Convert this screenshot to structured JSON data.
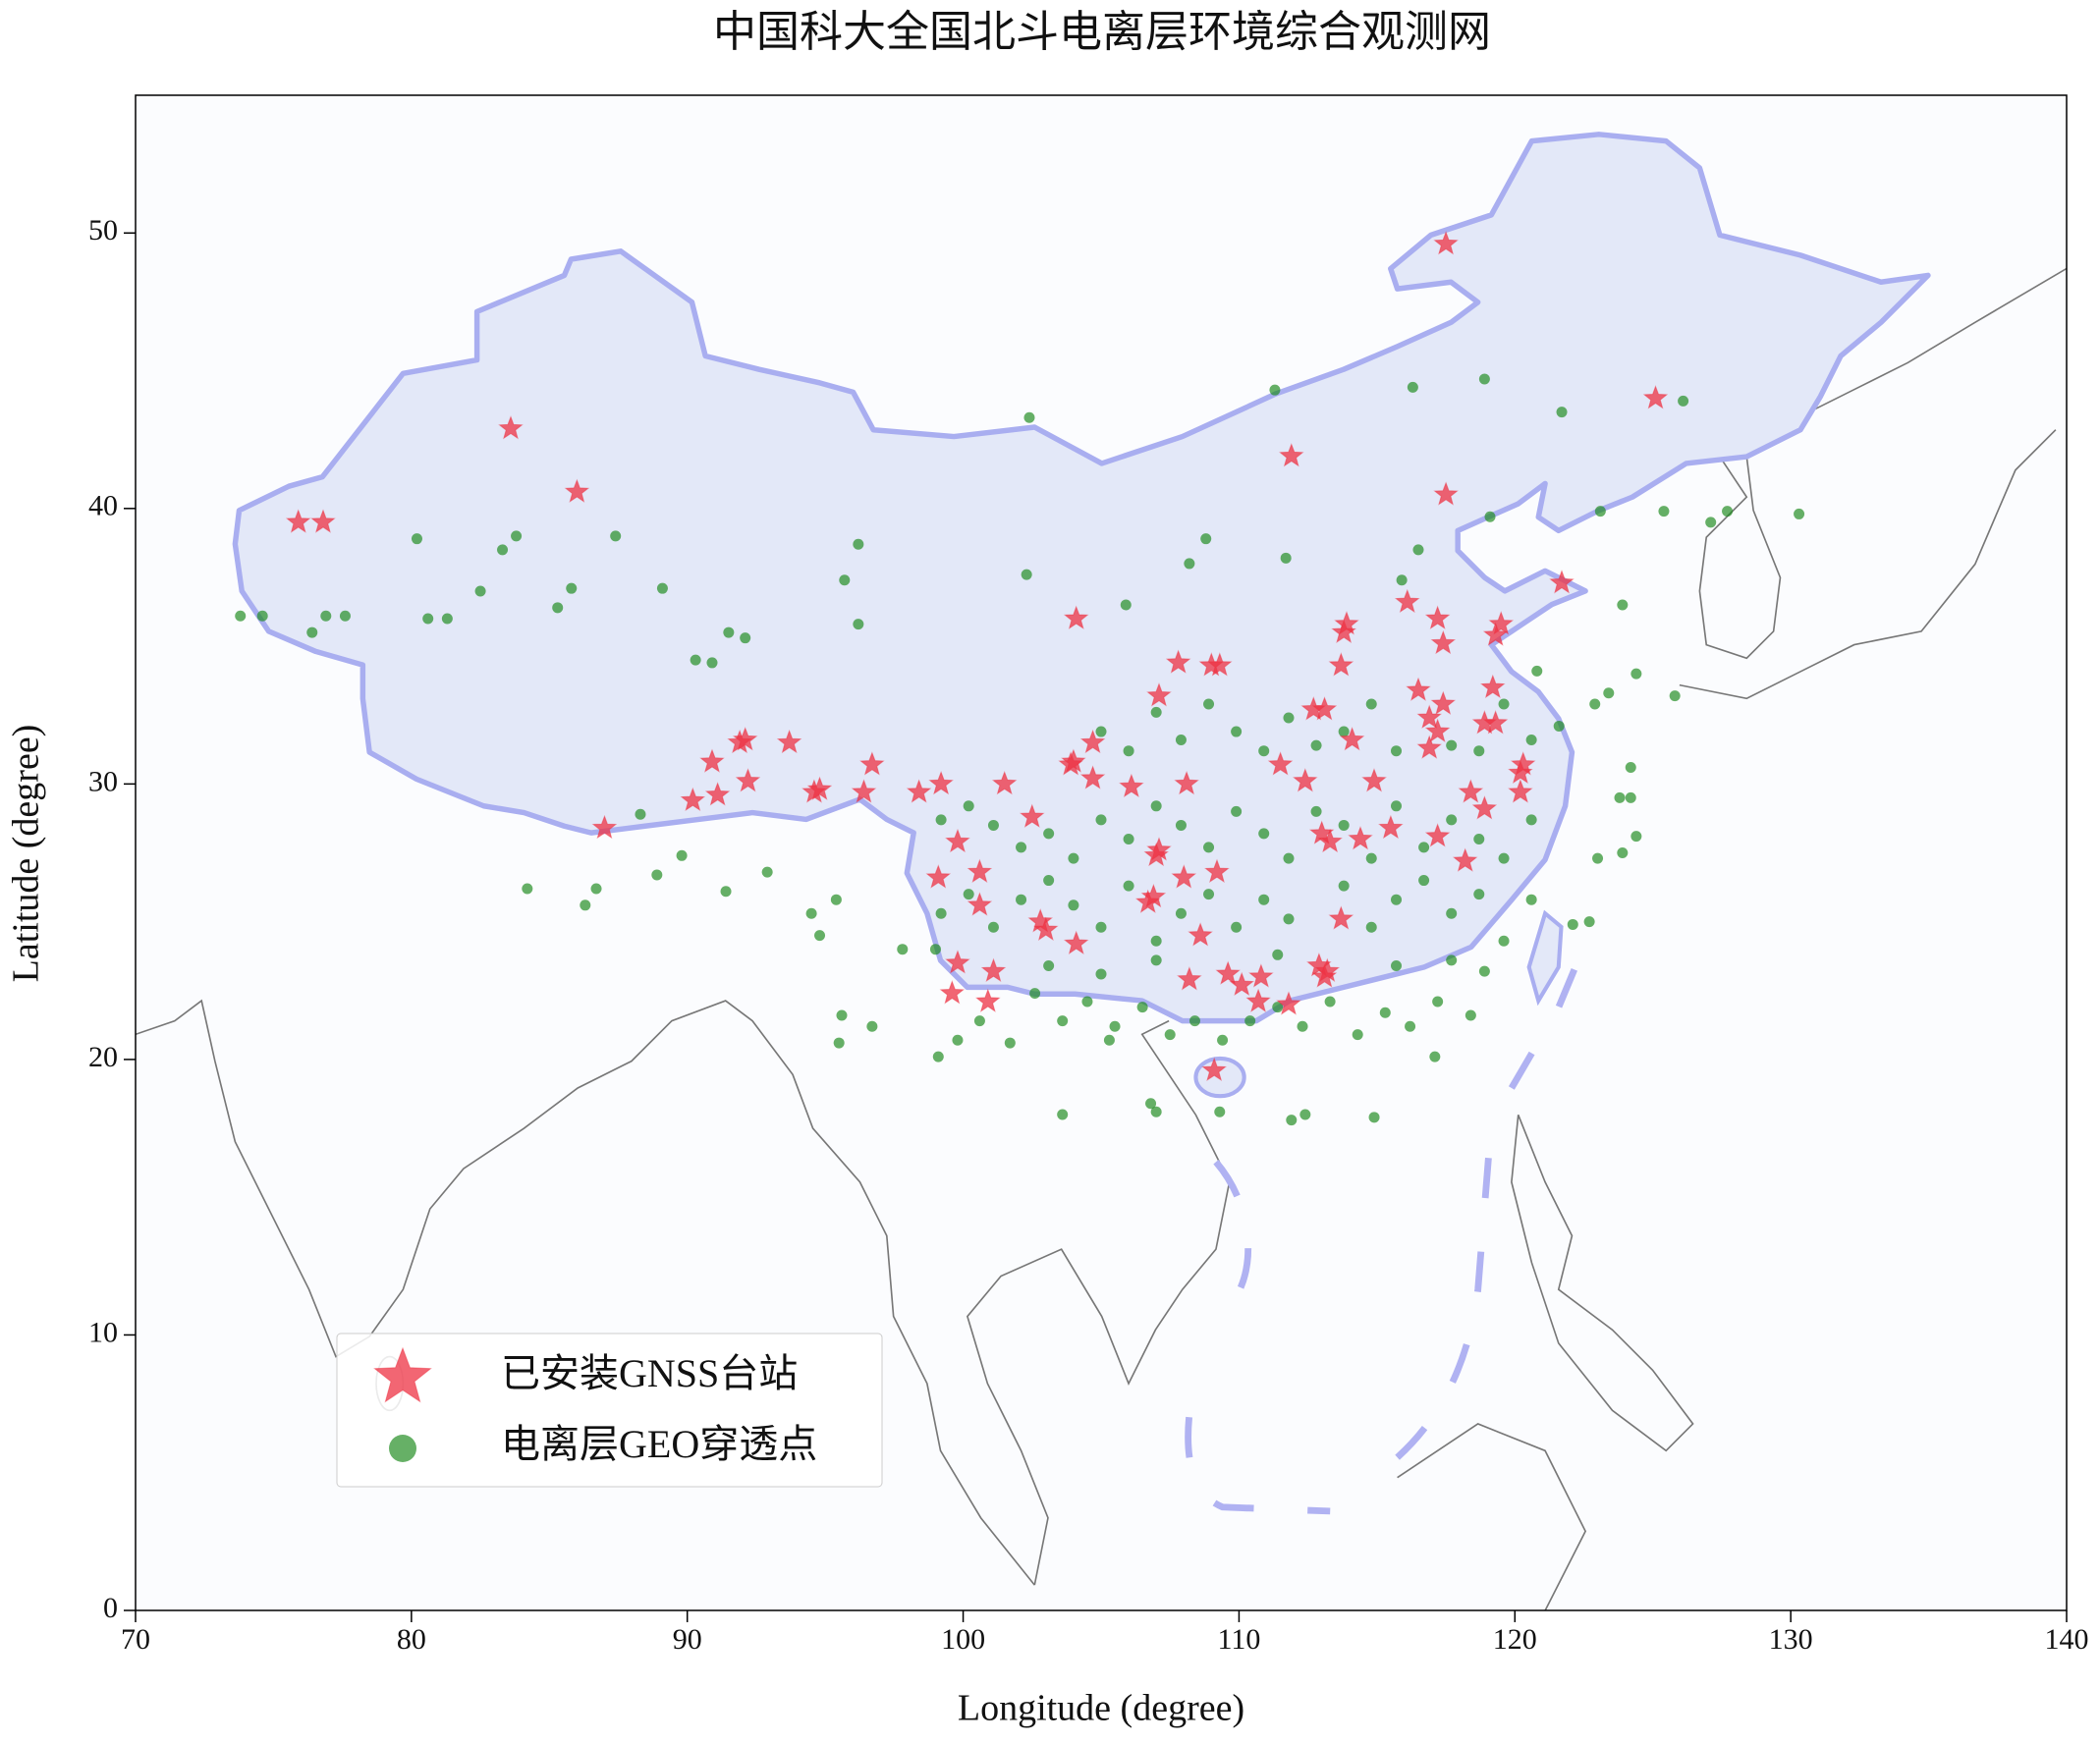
{
  "chart_data": {
    "type": "scatter",
    "title": "中国科大全国北斗电离层环境综合观测网",
    "x_label": "Longitude (degree)",
    "y_label": "Latitude (degree)",
    "xlim": [
      70,
      140
    ],
    "xticks": [
      70,
      80,
      90,
      100,
      110,
      120,
      130,
      140
    ],
    "ylim": [
      0,
      55
    ],
    "yticks": [
      0,
      10,
      20,
      30,
      40,
      50
    ],
    "legend": "lower left",
    "series": [
      {
        "name": "已安装GNSS台站",
        "color": "#ee3344",
        "marker": "star",
        "x": [
          117.5,
          75.9,
          76.8,
          83.6,
          86.0,
          125.1,
          111.9,
          117.5,
          121.7,
          104.1,
          117.2,
          116.1,
          113.8,
          113.9,
          117.4,
          119.5,
          119.3,
          113.7,
          107.8,
          109.0,
          109.3,
          107.1,
          116.5,
          117.4,
          119.2,
          112.7,
          113.1,
          116.9,
          117.2,
          118.9,
          119.3,
          114.1,
          116.9,
          92.1,
          91.9,
          90.9,
          93.7,
          104.7,
          96.7,
          103.9,
          104.0,
          111.5,
          120.3,
          120.2,
          92.2,
          91.1,
          90.2,
          94.6,
          94.8,
          96.4,
          98.4,
          99.2,
          101.5,
          104.7,
          106.1,
          108.1,
          112.4,
          114.9,
          118.4,
          120.2,
          118.9,
          87.0,
          99.8,
          102.5,
          107.1,
          107.0,
          113.0,
          113.3,
          114.4,
          115.5,
          117.2,
          118.2,
          99.1,
          100.6,
          100.6,
          106.7,
          106.9,
          108.0,
          109.2,
          113.7,
          102.8,
          103.0,
          104.1,
          108.6,
          99.8,
          101.1,
          108.2,
          109.6,
          110.1,
          110.8,
          112.9,
          113.2,
          113.1,
          99.6,
          100.9,
          110.7,
          111.8,
          109.1
        ],
        "y": [
          49.6,
          39.5,
          39.5,
          42.9,
          40.6,
          44.0,
          41.9,
          40.5,
          37.3,
          36.0,
          36.0,
          36.6,
          35.5,
          35.8,
          35.1,
          35.8,
          35.4,
          34.3,
          34.4,
          34.3,
          34.3,
          33.2,
          33.4,
          32.9,
          33.5,
          32.7,
          32.7,
          32.4,
          31.9,
          32.2,
          32.2,
          31.6,
          31.3,
          31.6,
          31.5,
          30.8,
          31.5,
          31.5,
          30.7,
          30.7,
          30.8,
          30.7,
          30.7,
          30.4,
          30.1,
          29.6,
          29.4,
          29.7,
          29.8,
          29.7,
          29.7,
          30.0,
          30.0,
          30.2,
          29.9,
          30.0,
          30.1,
          30.1,
          29.7,
          29.7,
          29.1,
          28.4,
          27.9,
          28.8,
          27.6,
          27.4,
          28.2,
          27.9,
          28.0,
          28.4,
          28.1,
          27.2,
          26.6,
          26.8,
          25.6,
          25.7,
          25.9,
          26.6,
          26.8,
          25.1,
          25.0,
          24.7,
          24.2,
          24.5,
          23.5,
          23.2,
          22.9,
          23.1,
          22.7,
          23.0,
          23.4,
          23.2,
          23.0,
          22.4,
          22.1,
          22.1,
          22.0,
          19.6
        ]
      },
      {
        "name": "电离层GEO穿透点",
        "color": "#1e8b1e",
        "marker": "circle",
        "x": [
          73.8,
          74.6,
          76.4,
          76.9,
          77.6,
          80.2,
          80.6,
          81.3,
          82.5,
          83.3,
          83.8,
          85.3,
          85.8,
          87.4,
          89.1,
          90.3,
          90.9,
          91.5,
          92.1,
          95.7,
          96.2,
          96.2,
          102.4,
          111.3,
          116.3,
          118.9,
          121.7,
          126.1,
          123.1,
          125.4,
          127.1,
          127.7,
          130.3,
          123.9,
          125.8,
          120.8,
          119.1,
          116.5,
          115.9,
          111.7,
          108.2,
          108.8,
          102.3,
          105.9,
          84.2,
          86.3,
          86.7,
          88.3,
          88.9,
          89.8,
          91.4,
          92.9,
          94.5,
          94.8,
          95.4,
          95.6,
          95.5,
          96.7,
          97.8,
          99.0,
          99.1,
          99.8,
          100.6,
          101.7,
          103.6,
          105.3,
          106.8,
          107.0,
          109.3,
          111.9,
          112.4,
          114.9,
          117.1,
          118.4,
          118.9,
          122.1,
          122.7,
          123.0,
          123.9,
          124.4,
          124.2,
          123.8,
          124.2,
          124.4,
          123.4,
          122.9,
          99.2,
          100.2,
          101.1,
          102.1,
          103.1,
          104.0,
          105.0,
          106.0,
          107.0,
          107.9,
          108.9,
          109.9,
          110.9,
          111.8,
          112.8,
          113.8,
          114.8,
          115.7,
          116.7,
          117.7,
          118.7,
          119.6,
          120.6,
          99.2,
          100.2,
          101.1,
          102.1,
          103.1,
          104.0,
          105.0,
          106.0,
          107.0,
          107.9,
          108.9,
          109.9,
          110.9,
          111.8,
          113.8,
          114.8,
          115.7,
          116.7,
          117.7,
          118.7,
          119.6,
          120.6,
          105.0,
          106.0,
          107.0,
          107.9,
          108.9,
          109.9,
          110.9,
          111.8,
          112.8,
          113.8,
          114.8,
          115.7,
          117.7,
          118.7,
          119.6,
          120.6,
          121.6,
          102.6,
          103.6,
          104.5,
          105.5,
          106.5,
          107.5,
          108.4,
          109.4,
          110.4,
          111.4,
          112.3,
          113.3,
          114.3,
          115.3,
          116.2,
          117.2,
          103.1,
          105.0,
          107.0,
          111.4,
          115.7,
          117.7
        ],
        "y": [
          36.1,
          36.1,
          35.5,
          36.1,
          36.1,
          38.9,
          36.0,
          36.0,
          37.0,
          38.5,
          39.0,
          36.4,
          37.1,
          39.0,
          37.1,
          34.5,
          34.4,
          35.5,
          35.3,
          37.4,
          38.7,
          35.8,
          43.3,
          44.3,
          44.4,
          44.7,
          43.5,
          43.9,
          39.9,
          39.9,
          39.5,
          39.9,
          39.8,
          36.5,
          33.2,
          34.1,
          39.7,
          38.5,
          37.4,
          38.2,
          38.0,
          38.9,
          37.6,
          36.5,
          26.2,
          25.6,
          26.2,
          28.9,
          26.7,
          27.4,
          26.1,
          26.8,
          25.3,
          24.5,
          25.8,
          21.6,
          20.6,
          21.2,
          24.0,
          24.0,
          20.1,
          20.7,
          21.4,
          20.6,
          18.0,
          20.7,
          18.4,
          18.1,
          18.1,
          17.8,
          18.0,
          17.9,
          20.1,
          21.6,
          23.2,
          24.9,
          25.0,
          27.3,
          27.5,
          28.1,
          29.5,
          29.5,
          30.6,
          34.0,
          33.3,
          32.9,
          28.7,
          29.2,
          28.5,
          27.7,
          28.2,
          27.3,
          28.7,
          28.0,
          29.2,
          28.5,
          27.7,
          29.0,
          28.2,
          27.3,
          29.0,
          28.5,
          27.3,
          29.2,
          27.7,
          28.7,
          28.0,
          27.3,
          28.7,
          25.3,
          26.0,
          24.8,
          25.8,
          26.5,
          25.6,
          24.8,
          26.3,
          24.3,
          25.3,
          26.0,
          24.8,
          25.8,
          25.1,
          26.3,
          24.8,
          25.8,
          26.5,
          25.3,
          26.0,
          24.3,
          25.8,
          31.9,
          31.2,
          32.6,
          31.6,
          32.9,
          31.9,
          31.2,
          32.4,
          31.4,
          31.9,
          32.9,
          31.2,
          31.4,
          31.2,
          32.9,
          31.6,
          32.1,
          22.4,
          21.4,
          22.1,
          21.2,
          21.9,
          20.9,
          21.4,
          20.7,
          21.4,
          21.9,
          21.2,
          22.1,
          20.9,
          21.7,
          21.2,
          22.1,
          23.4,
          23.1,
          23.6,
          23.8,
          23.4,
          23.6
        ]
      }
    ]
  }
}
